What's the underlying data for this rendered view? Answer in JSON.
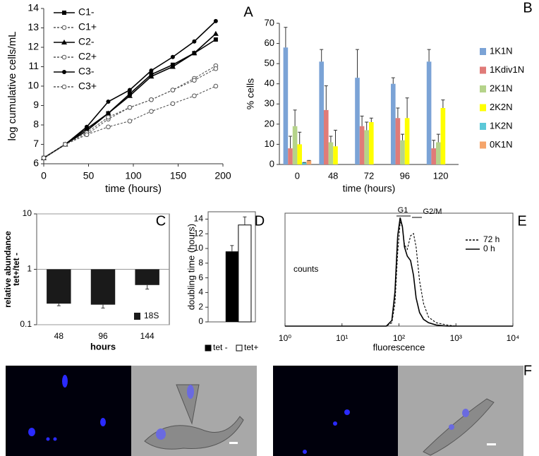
{
  "chart_data": [
    {
      "panel": "A",
      "type": "line",
      "ylabel": "log cumulative cells/mL",
      "xlabel": "time (hours)",
      "x": [
        0,
        24,
        48,
        72,
        96,
        120,
        144,
        168,
        192
      ],
      "xlim": [
        0,
        200
      ],
      "xticks": [
        0,
        50,
        100,
        150,
        200
      ],
      "ylim": [
        6,
        14
      ],
      "yticks": [
        6,
        7,
        8,
        9,
        10,
        11,
        12,
        13,
        14
      ],
      "legend": "upper left",
      "series": [
        {
          "name": "C1-",
          "color": "#000000",
          "marker": "square",
          "dashed": false,
          "values": [
            6.3,
            7.0,
            7.8,
            8.6,
            9.6,
            10.6,
            11.1,
            11.7,
            12.4
          ]
        },
        {
          "name": "C1+",
          "color": "#555555",
          "marker": "circle-open",
          "dashed": true,
          "values": [
            6.3,
            7.0,
            7.5,
            8.3,
            8.9,
            9.3,
            9.8,
            10.4,
            11.05
          ]
        },
        {
          "name": "C2-",
          "color": "#000000",
          "marker": "triangle",
          "dashed": false,
          "values": [
            6.3,
            7.0,
            7.7,
            8.6,
            9.5,
            10.5,
            11.0,
            11.7,
            12.7
          ]
        },
        {
          "name": "C2+",
          "color": "#555555",
          "marker": "circle-open",
          "dashed": true,
          "values": [
            6.3,
            7.0,
            7.6,
            8.4,
            8.9,
            9.3,
            9.8,
            10.3,
            10.9
          ]
        },
        {
          "name": "C3-",
          "color": "#000000",
          "marker": "circle",
          "dashed": false,
          "values": [
            6.3,
            7.0,
            7.9,
            9.2,
            9.8,
            10.8,
            11.5,
            12.3,
            13.35
          ]
        },
        {
          "name": "C3+",
          "color": "#555555",
          "marker": "circle-open",
          "dashed": true,
          "values": [
            6.3,
            7.0,
            7.5,
            7.9,
            8.2,
            8.7,
            9.1,
            9.5,
            10.0
          ]
        }
      ]
    },
    {
      "panel": "B",
      "type": "bar",
      "ylabel": "% cells",
      "xlabel": "time (hours)",
      "categories": [
        "0",
        "48",
        "72",
        "96",
        "120"
      ],
      "ylim": [
        0,
        70
      ],
      "yticks": [
        0,
        10,
        20,
        30,
        40,
        50,
        60,
        70
      ],
      "legend": "right",
      "series": [
        {
          "name": "1K1N",
          "color": "#7ba3d6",
          "values": [
            58,
            51,
            43,
            40,
            51
          ],
          "errors": [
            10,
            6,
            14,
            3,
            6
          ]
        },
        {
          "name": "1Kdiv1N",
          "color": "#e07b78",
          "values": [
            8,
            27,
            19,
            23,
            8
          ],
          "errors": [
            6,
            12,
            5,
            5,
            4
          ]
        },
        {
          "name": "2K1N",
          "color": "#b5d38a",
          "values": [
            19,
            11,
            17,
            12,
            11
          ],
          "errors": [
            8,
            3,
            4,
            3,
            4
          ]
        },
        {
          "name": "2K2N",
          "color": "#ffff00",
          "values": [
            10,
            9,
            21,
            23,
            28
          ],
          "errors": [
            6,
            8,
            2,
            10,
            4
          ]
        },
        {
          "name": "1K2N",
          "color": "#5cc8d8",
          "values": [
            1,
            0,
            0,
            0,
            0
          ],
          "errors": [
            0,
            0,
            0,
            0,
            0
          ]
        },
        {
          "name": "0K1N",
          "color": "#f5a56b",
          "values": [
            2,
            0,
            0,
            0,
            0
          ],
          "errors": [
            0,
            0,
            0,
            0,
            0
          ]
        }
      ]
    },
    {
      "panel": "C",
      "type": "bar",
      "log_y": true,
      "ylabel": [
        "relative abundance",
        "tet+/tet -"
      ],
      "xlabel": "hours",
      "categories": [
        "48",
        "96",
        "144"
      ],
      "ylim": [
        0.1,
        10
      ],
      "yticks": [
        0.1,
        1,
        10
      ],
      "grid": true,
      "legend": "lower right",
      "series": [
        {
          "name": "18S",
          "color": "#1a1a1a",
          "values": [
            0.24,
            0.23,
            0.52
          ],
          "errors": [
            0.02,
            0.03,
            0.08
          ]
        }
      ]
    },
    {
      "panel": "D",
      "type": "bar",
      "ylabel": "doubling time (hours)",
      "categories": [
        "tet -",
        "tet+"
      ],
      "values": [
        9.6,
        13.2
      ],
      "errors": [
        0.8,
        1.1
      ],
      "colors": [
        "#000000",
        "#ffffff"
      ],
      "ylim": [
        0,
        15
      ],
      "yticks": [
        0,
        2,
        4,
        6,
        8,
        10,
        12,
        14
      ],
      "legend": "bottom"
    },
    {
      "panel": "E",
      "type": "line",
      "log_x": true,
      "xlabel": "fluorescence",
      "ylabel": "counts",
      "x": [
        1,
        60,
        75,
        85,
        95,
        105,
        115,
        125,
        140,
        160,
        180,
        200,
        230,
        270,
        330,
        450,
        700,
        1000,
        10000
      ],
      "xlim": [
        1,
        10000
      ],
      "xticks": [
        {
          "value": 1,
          "label": "10⁰"
        },
        {
          "value": 10,
          "label": "10¹"
        },
        {
          "value": 100,
          "label": "10²"
        },
        {
          "value": 1000,
          "label": "10³"
        },
        {
          "value": 10000,
          "label": "10⁴"
        }
      ],
      "ylim": [
        0,
        100
      ],
      "annotations": [
        "G1",
        "G2/M"
      ],
      "legend": "upper right",
      "series": [
        {
          "name": "72 h",
          "color": "#000000",
          "dashed": true,
          "values": [
            0,
            0,
            3,
            20,
            65,
            92,
            88,
            72,
            68,
            80,
            82,
            70,
            40,
            20,
            8,
            3,
            1,
            0,
            0
          ]
        },
        {
          "name": "0 h",
          "color": "#000000",
          "dashed": false,
          "values": [
            0,
            0,
            5,
            30,
            80,
            96,
            88,
            70,
            62,
            58,
            45,
            25,
            12,
            6,
            3,
            1,
            0,
            0,
            0
          ]
        }
      ]
    }
  ],
  "figure_f": {
    "panel": "F"
  }
}
